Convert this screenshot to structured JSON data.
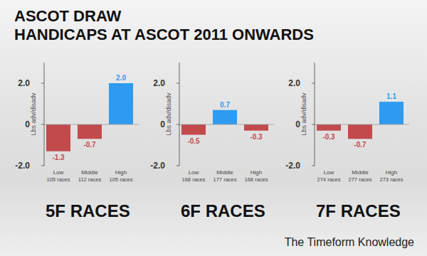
{
  "header": {
    "title": [
      "ASCOT DRAW",
      "HANDICAPS AT ASCOT 2011 ONWARDS"
    ]
  },
  "footer": "The Timeform Knowledge",
  "chart_data": [
    {
      "type": "bar",
      "title": "5F RACES",
      "y_label": "Lbs adv/disadv",
      "categories": [
        "Low",
        "Middle",
        "High"
      ],
      "category_sublabels": [
        "105 races",
        "112 races",
        "105 races"
      ],
      "values": [
        -1.3,
        -0.7,
        2.0
      ],
      "value_labels": [
        "-1.3",
        "-0.7",
        "2.0"
      ],
      "colors": [
        "#c24a4c",
        "#c24a4c",
        "#2e9bf0"
      ],
      "ylim": [
        -2,
        3
      ],
      "yticks": [
        {
          "value": -2,
          "label": "-2.0"
        },
        0,
        {
          "value": 2,
          "label": "2.0"
        }
      ],
      "grid": false,
      "data_labels": true
    },
    {
      "type": "bar",
      "title": "6F RACES",
      "y_label": "Lbs adv/disadv",
      "categories": [
        "Low",
        "Middle",
        "High"
      ],
      "category_sublabels": [
        "168 races",
        "177 races",
        "168 races"
      ],
      "values": [
        -0.5,
        0.7,
        -0.3
      ],
      "value_labels": [
        "-0.5",
        "0.7",
        "-0.3"
      ],
      "colors": [
        "#c24a4c",
        "#2e9bf0",
        "#c24a4c"
      ],
      "ylim": [
        -2,
        3
      ],
      "yticks": [
        {
          "value": -2,
          "label": "-2.0"
        },
        0,
        {
          "value": 2,
          "label": "2.0"
        }
      ],
      "grid": false,
      "data_labels": true
    },
    {
      "type": "bar",
      "title": "7F RACES",
      "y_label": "Lbs adv/disadv",
      "categories": [
        "Low",
        "Middle",
        "High"
      ],
      "category_sublabels": [
        "274 races",
        "277 races",
        "273 races"
      ],
      "values": [
        -0.3,
        -0.7,
        1.1
      ],
      "value_labels": [
        "-0.3",
        "-0.7",
        "1.1"
      ],
      "colors": [
        "#c24a4c",
        "#c24a4c",
        "#2e9bf0"
      ],
      "ylim": [
        -2,
        3
      ],
      "yticks": [
        {
          "value": -2,
          "label": "-2.0"
        },
        0,
        {
          "value": 2,
          "label": "2.0"
        }
      ],
      "grid": false,
      "data_labels": true
    }
  ]
}
